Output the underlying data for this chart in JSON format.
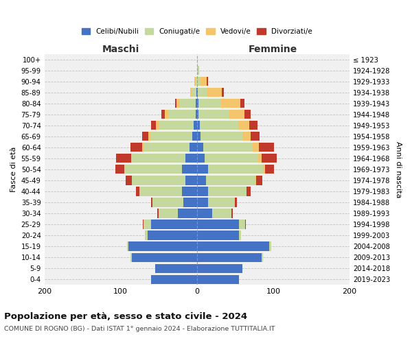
{
  "age_groups": [
    "0-4",
    "5-9",
    "10-14",
    "15-19",
    "20-24",
    "25-29",
    "30-34",
    "35-39",
    "40-44",
    "45-49",
    "50-54",
    "55-59",
    "60-64",
    "65-69",
    "70-74",
    "75-79",
    "80-84",
    "85-89",
    "90-94",
    "95-99",
    "100+"
  ],
  "birth_years": [
    "2019-2023",
    "2014-2018",
    "2009-2013",
    "2004-2008",
    "1999-2003",
    "1994-1998",
    "1989-1993",
    "1984-1988",
    "1979-1983",
    "1974-1978",
    "1969-1973",
    "1964-1968",
    "1959-1963",
    "1954-1958",
    "1949-1953",
    "1944-1948",
    "1939-1943",
    "1934-1938",
    "1929-1933",
    "1924-1928",
    "≤ 1923"
  ],
  "maschi": {
    "celibi": [
      60,
      55,
      85,
      90,
      65,
      60,
      25,
      18,
      20,
      15,
      20,
      15,
      10,
      6,
      4,
      2,
      2,
      1,
      0,
      0,
      0
    ],
    "coniugati": [
      0,
      0,
      2,
      2,
      3,
      10,
      25,
      40,
      55,
      70,
      75,
      70,
      60,
      55,
      45,
      35,
      20,
      5,
      2,
      0,
      0
    ],
    "vedovi": [
      0,
      0,
      0,
      0,
      0,
      0,
      0,
      0,
      0,
      0,
      0,
      1,
      2,
      3,
      5,
      5,
      5,
      3,
      1,
      0,
      0
    ],
    "divorziati": [
      0,
      0,
      0,
      0,
      0,
      1,
      2,
      2,
      5,
      8,
      12,
      20,
      15,
      8,
      6,
      5,
      2,
      0,
      0,
      0,
      0
    ]
  },
  "femmine": {
    "nubili": [
      55,
      60,
      85,
      95,
      55,
      55,
      20,
      15,
      15,
      12,
      15,
      10,
      8,
      5,
      4,
      2,
      2,
      1,
      0,
      0,
      0
    ],
    "coniugate": [
      0,
      0,
      2,
      2,
      3,
      8,
      25,
      35,
      50,
      65,
      72,
      70,
      65,
      55,
      50,
      40,
      30,
      12,
      5,
      2,
      0
    ],
    "vedove": [
      0,
      0,
      0,
      0,
      0,
      0,
      0,
      0,
      0,
      1,
      2,
      5,
      8,
      10,
      15,
      20,
      25,
      20,
      8,
      1,
      0
    ],
    "divorziate": [
      0,
      0,
      0,
      0,
      0,
      1,
      2,
      2,
      5,
      8,
      12,
      20,
      20,
      12,
      10,
      8,
      5,
      2,
      2,
      0,
      0
    ]
  },
  "colors": {
    "celibi": "#4472c4",
    "coniugati": "#c5d99e",
    "vedovi": "#f5c56b",
    "divorziati": "#c0392b"
  },
  "xlim": 200,
  "title": "Popolazione per età, sesso e stato civile - 2024",
  "subtitle": "COMUNE DI ROGNO (BG) - Dati ISTAT 1° gennaio 2024 - Elaborazione TUTTITALIA.IT",
  "ylabel_left": "Fasce di età",
  "ylabel_right": "Anni di nascita",
  "xlabel_left": "Maschi",
  "xlabel_right": "Femmine",
  "bg_color": "#f0f0f0",
  "grid_color": "#bbbbbb"
}
